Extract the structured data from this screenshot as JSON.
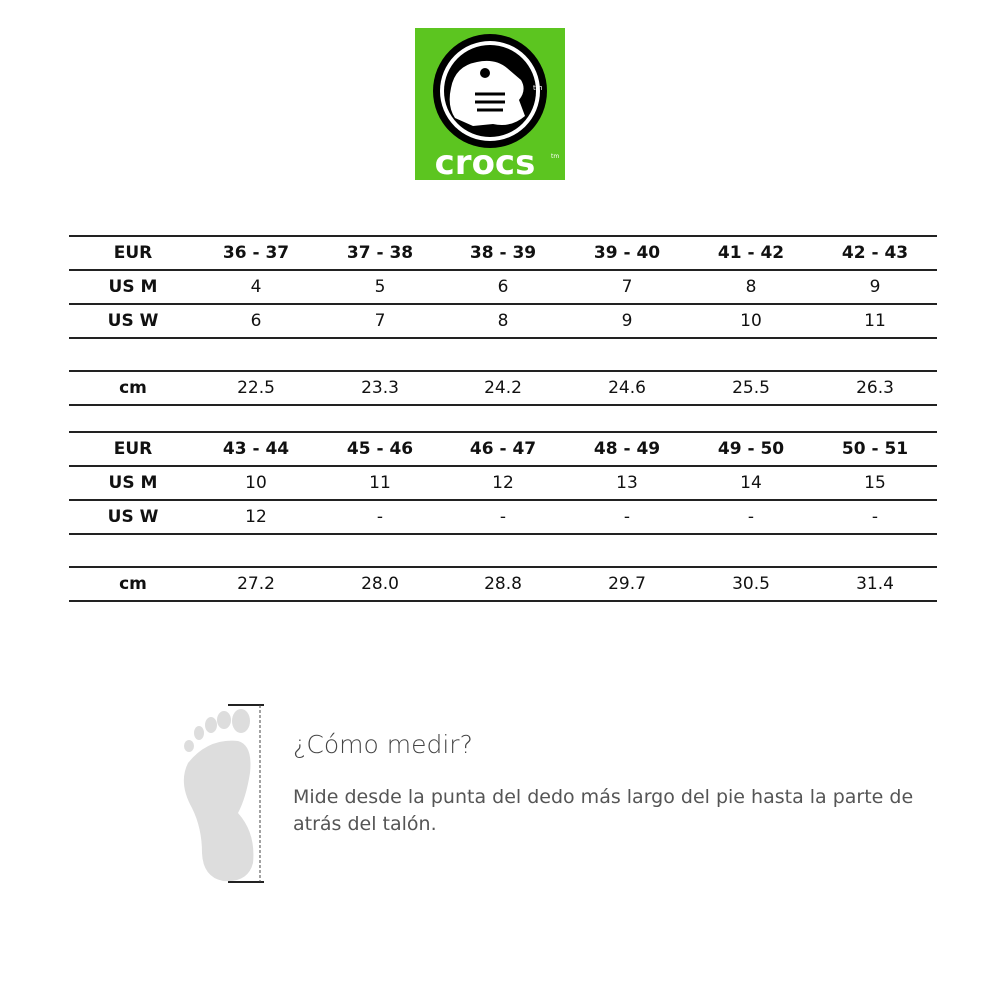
{
  "logo": {
    "brand": "crocs",
    "tm": "tm",
    "color": "#5cc520"
  },
  "tables": [
    {
      "rows": [
        {
          "label": "EUR",
          "values": [
            "36 - 37",
            "37 - 38",
            "38 - 39",
            "39 - 40",
            "41 - 42",
            "42 - 43"
          ],
          "header": true
        },
        {
          "label": "US M",
          "values": [
            "4",
            "5",
            "6",
            "7",
            "8",
            "9"
          ]
        },
        {
          "label": "US W",
          "values": [
            "6",
            "7",
            "8",
            "9",
            "10",
            "11"
          ]
        },
        {
          "label": "",
          "values": []
        },
        {
          "label": "cm",
          "values": [
            "22.5",
            "23.3",
            "24.2",
            "24.6",
            "25.5",
            "26.3"
          ]
        }
      ]
    },
    {
      "rows": [
        {
          "label": "EUR",
          "values": [
            "43 - 44",
            "45 - 46",
            "46 - 47",
            "48 - 49",
            "49 - 50",
            "50 - 51"
          ],
          "header": true
        },
        {
          "label": "US M",
          "values": [
            "10",
            "11",
            "12",
            "13",
            "14",
            "15"
          ]
        },
        {
          "label": "US W",
          "values": [
            "12",
            "-",
            "-",
            "-",
            "-",
            "-"
          ]
        },
        {
          "label": "",
          "values": []
        },
        {
          "label": "cm",
          "values": [
            "27.2",
            "28.0",
            "28.8",
            "29.7",
            "30.5",
            "31.4"
          ]
        }
      ]
    }
  ],
  "howto": {
    "icon": "foot-icon",
    "title": "¿Cómo medir?",
    "text": "Mide desde la punta del dedo más largo del pie hasta la parte de atrás del talón."
  }
}
